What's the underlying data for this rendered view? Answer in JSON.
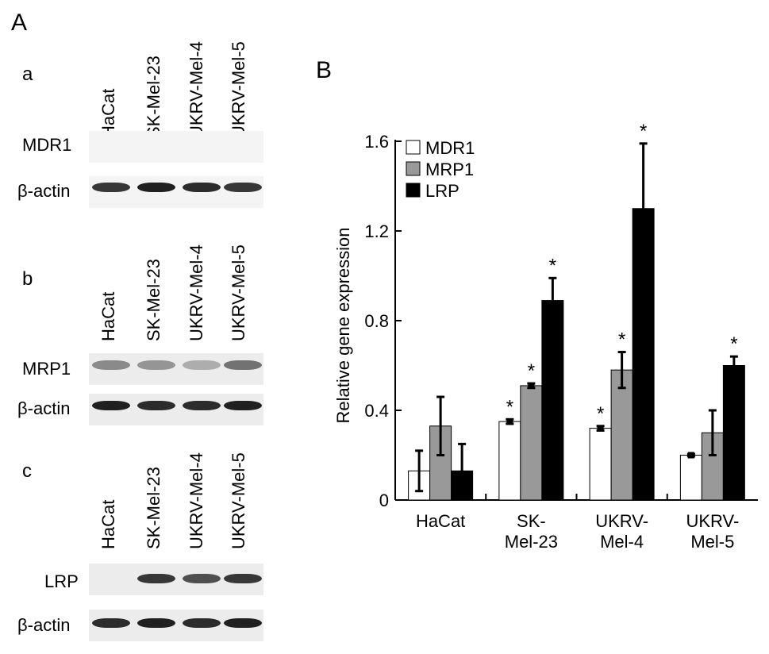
{
  "panel_a": {
    "letter": "A",
    "blots": [
      {
        "letter": "a",
        "lanes": [
          "HaCat",
          "SK-Mel-23",
          "UKRV-Mel-4",
          "UKRV-Mel-5"
        ],
        "rows": [
          {
            "label": "MDR1",
            "band_intensity": [
              0,
              0,
              0,
              0
            ]
          },
          {
            "label": "β-actin",
            "band_intensity": [
              0.85,
              0.95,
              0.9,
              0.85
            ]
          }
        ]
      },
      {
        "letter": "b",
        "lanes": [
          "HaCat",
          "SK-Mel-23",
          "UKRV-Mel-4",
          "UKRV-Mel-5"
        ],
        "rows": [
          {
            "label": "MRP1",
            "band_intensity": [
              0.5,
              0.45,
              0.35,
              0.6
            ]
          },
          {
            "label": "β-actin",
            "band_intensity": [
              0.95,
              0.9,
              0.9,
              0.95
            ]
          }
        ]
      },
      {
        "letter": "c",
        "lanes": [
          "HaCat",
          "SK-Mel-23",
          "UKRV-Mel-4",
          "UKRV-Mel-5"
        ],
        "rows": [
          {
            "label": "LRP",
            "band_intensity": [
              0.08,
              0.85,
              0.75,
              0.85
            ]
          },
          {
            "label": "β-actin",
            "band_intensity": [
              0.9,
              0.95,
              0.9,
              0.95
            ]
          }
        ]
      }
    ]
  },
  "chart_data": {
    "letter": "B",
    "type": "bar",
    "ylabel": "Relative gene expression",
    "ylim": [
      0,
      1.6
    ],
    "yticks": [
      0,
      0.4,
      0.8,
      1.2,
      1.6
    ],
    "ytick_labels": [
      "0",
      "0.4",
      "0.8",
      "1.2",
      "1.6"
    ],
    "categories": [
      {
        "line1": "HaCat",
        "line2": ""
      },
      {
        "line1": "SK-",
        "line2": "Mel-23"
      },
      {
        "line1": "UKRV-",
        "line2": "Mel-4"
      },
      {
        "line1": "UKRV-",
        "line2": "Mel-5"
      }
    ],
    "legend_position": "top-left",
    "series": [
      {
        "name": "MDR1",
        "color": "#ffffff",
        "values": [
          0.13,
          0.35,
          0.32,
          0.2
        ],
        "errors": [
          0.09,
          0.01,
          0.01,
          0.005
        ],
        "significant": [
          false,
          true,
          true,
          false
        ]
      },
      {
        "name": "MRP1",
        "color": "#999999",
        "values": [
          0.33,
          0.51,
          0.58,
          0.3
        ],
        "errors": [
          0.13,
          0.01,
          0.08,
          0.1
        ],
        "significant": [
          false,
          true,
          true,
          false
        ]
      },
      {
        "name": "LRP",
        "color": "#000000",
        "values": [
          0.13,
          0.89,
          1.3,
          0.6
        ],
        "errors": [
          0.12,
          0.1,
          0.29,
          0.04
        ],
        "significant": [
          false,
          true,
          true,
          true
        ]
      }
    ],
    "significance_marker": "*"
  }
}
